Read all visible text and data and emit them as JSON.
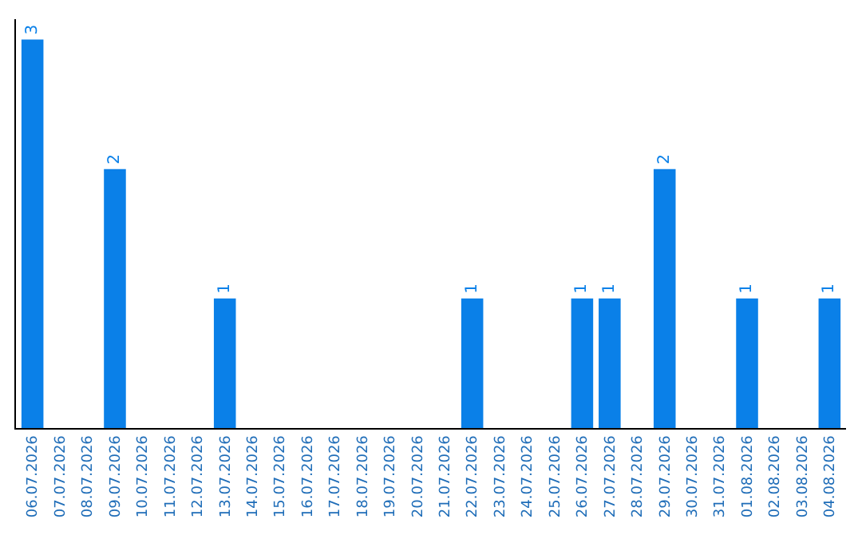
{
  "chart_data": {
    "type": "bar",
    "categories": [
      "06.07.2026",
      "07.07.2026",
      "08.07.2026",
      "09.07.2026",
      "10.07.2026",
      "11.07.2026",
      "12.07.2026",
      "13.07.2026",
      "14.07.2026",
      "15.07.2026",
      "16.07.2026",
      "17.07.2026",
      "18.07.2026",
      "19.07.2026",
      "20.07.2026",
      "21.07.2026",
      "22.07.2026",
      "23.07.2026",
      "24.07.2026",
      "25.07.2026",
      "26.07.2026",
      "27.07.2026",
      "28.07.2026",
      "29.07.2026",
      "30.07.2026",
      "31.07.2026",
      "01.08.2026",
      "02.08.2026",
      "03.08.2026",
      "04.08.2026"
    ],
    "values": [
      3,
      0,
      0,
      2,
      0,
      0,
      0,
      1,
      0,
      0,
      0,
      0,
      0,
      0,
      0,
      0,
      1,
      0,
      0,
      0,
      1,
      1,
      0,
      2,
      0,
      0,
      1,
      0,
      0,
      1
    ],
    "value_labels": [
      "3",
      null,
      null,
      "2",
      null,
      null,
      null,
      "1",
      null,
      null,
      null,
      null,
      null,
      null,
      null,
      null,
      "1",
      null,
      null,
      null,
      "1",
      "1",
      null,
      "2",
      null,
      null,
      "1",
      null,
      null,
      "1"
    ],
    "color": "#0a80e8",
    "legend": false
  }
}
